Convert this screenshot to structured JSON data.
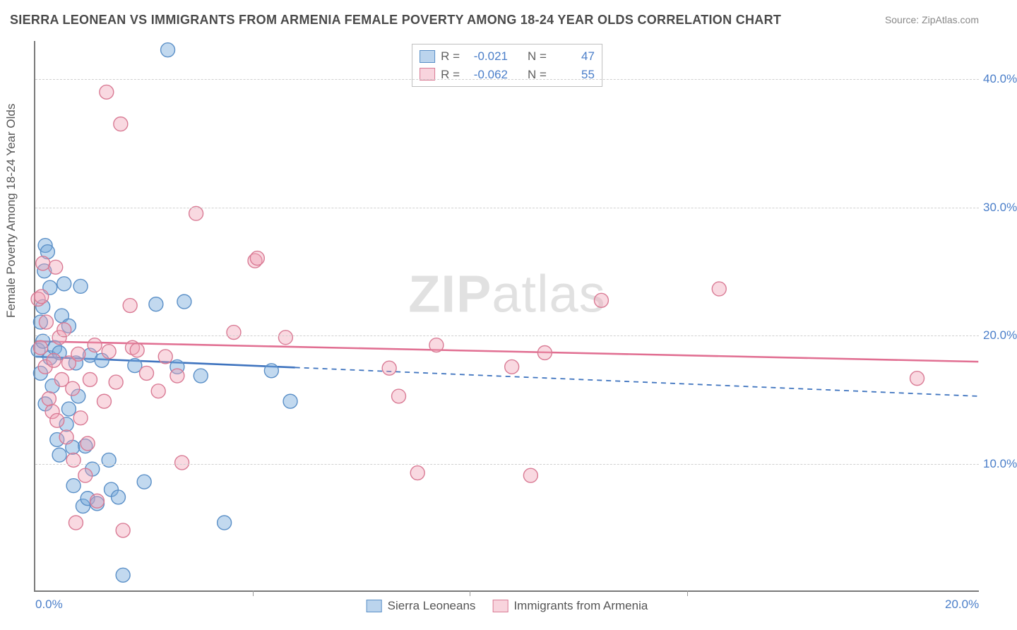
{
  "title": "SIERRA LEONEAN VS IMMIGRANTS FROM ARMENIA FEMALE POVERTY AMONG 18-24 YEAR OLDS CORRELATION CHART",
  "source": "Source: ZipAtlas.com",
  "watermark_zip": "ZIP",
  "watermark_atlas": "atlas",
  "ylabel": "Female Poverty Among 18-24 Year Olds",
  "chart": {
    "type": "scatter",
    "background_color": "#ffffff",
    "grid_color": "#d0d0d0",
    "axis_color": "#7a7a7a",
    "tick_label_color": "#4a7ec9",
    "label_fontsize": 17,
    "title_fontsize": 18,
    "xlim": [
      0,
      20
    ],
    "ylim": [
      0,
      43
    ],
    "xticks": [
      0,
      20
    ],
    "xtick_labels": [
      "0.0%",
      "20.0%"
    ],
    "xtick_minor": [
      4.6,
      9.2,
      13.8
    ],
    "yticks": [
      10,
      20,
      30,
      40
    ],
    "ytick_labels": [
      "10.0%",
      "20.0%",
      "30.0%",
      "40.0%"
    ],
    "marker_radius": 10,
    "marker_stroke_width": 1.4,
    "series": [
      {
        "name": "Sierra Leoneans",
        "fill": "rgba(120,170,220,0.45)",
        "stroke": "#5a8fc7",
        "r_value": "-0.021",
        "n_value": "47",
        "trend": {
          "y_at_x0": 18.3,
          "y_at_xmax": 15.2,
          "solid_until_x": 5.5,
          "color": "#3f74bf",
          "width": 2.6
        },
        "points": [
          [
            0.05,
            18.8
          ],
          [
            0.1,
            17.0
          ],
          [
            0.1,
            21.0
          ],
          [
            0.15,
            19.5
          ],
          [
            0.15,
            22.2
          ],
          [
            0.18,
            25.0
          ],
          [
            0.2,
            14.6
          ],
          [
            0.2,
            27.0
          ],
          [
            0.25,
            26.5
          ],
          [
            0.3,
            23.7
          ],
          [
            0.3,
            18.2
          ],
          [
            0.35,
            16.0
          ],
          [
            0.4,
            19.0
          ],
          [
            0.45,
            11.8
          ],
          [
            0.5,
            18.6
          ],
          [
            0.5,
            10.6
          ],
          [
            0.55,
            21.5
          ],
          [
            0.6,
            24.0
          ],
          [
            0.65,
            13.0
          ],
          [
            0.7,
            20.7
          ],
          [
            0.7,
            14.2
          ],
          [
            0.78,
            11.2
          ],
          [
            0.8,
            8.2
          ],
          [
            0.85,
            17.8
          ],
          [
            0.9,
            15.2
          ],
          [
            0.95,
            23.8
          ],
          [
            1.0,
            6.6
          ],
          [
            1.05,
            11.3
          ],
          [
            1.1,
            7.2
          ],
          [
            1.15,
            18.4
          ],
          [
            1.2,
            9.5
          ],
          [
            1.3,
            6.8
          ],
          [
            1.4,
            18.0
          ],
          [
            1.55,
            10.2
          ],
          [
            1.6,
            7.9
          ],
          [
            1.75,
            7.3
          ],
          [
            1.85,
            1.2
          ],
          [
            2.1,
            17.6
          ],
          [
            2.3,
            8.5
          ],
          [
            2.55,
            22.4
          ],
          [
            2.8,
            42.3
          ],
          [
            3.0,
            17.5
          ],
          [
            3.15,
            22.6
          ],
          [
            3.5,
            16.8
          ],
          [
            4.0,
            5.3
          ],
          [
            5.0,
            17.2
          ],
          [
            5.4,
            14.8
          ]
        ]
      },
      {
        "name": "Immigrants from Armenia",
        "fill": "rgba(240,160,180,0.40)",
        "stroke": "#d97a94",
        "r_value": "-0.062",
        "n_value": "55",
        "trend": {
          "y_at_x0": 19.5,
          "y_at_xmax": 17.9,
          "solid_until_x": 20,
          "color": "#e16f92",
          "width": 2.6
        },
        "points": [
          [
            0.05,
            22.8
          ],
          [
            0.1,
            19.0
          ],
          [
            0.12,
            23.0
          ],
          [
            0.15,
            25.6
          ],
          [
            0.2,
            17.5
          ],
          [
            0.22,
            21.0
          ],
          [
            0.28,
            15.0
          ],
          [
            0.35,
            14.0
          ],
          [
            0.38,
            18.0
          ],
          [
            0.42,
            25.3
          ],
          [
            0.45,
            13.3
          ],
          [
            0.5,
            19.8
          ],
          [
            0.55,
            16.5
          ],
          [
            0.6,
            20.4
          ],
          [
            0.65,
            12.0
          ],
          [
            0.7,
            17.8
          ],
          [
            0.78,
            15.8
          ],
          [
            0.8,
            10.2
          ],
          [
            0.85,
            5.3
          ],
          [
            0.9,
            18.5
          ],
          [
            0.95,
            13.5
          ],
          [
            1.05,
            9.0
          ],
          [
            1.1,
            11.5
          ],
          [
            1.15,
            16.5
          ],
          [
            1.25,
            19.2
          ],
          [
            1.3,
            7.0
          ],
          [
            1.45,
            14.8
          ],
          [
            1.5,
            39.0
          ],
          [
            1.55,
            18.7
          ],
          [
            1.7,
            16.3
          ],
          [
            1.8,
            36.5
          ],
          [
            1.85,
            4.7
          ],
          [
            2.0,
            22.3
          ],
          [
            2.05,
            19.0
          ],
          [
            2.15,
            18.8
          ],
          [
            2.35,
            17.0
          ],
          [
            2.6,
            15.6
          ],
          [
            2.75,
            18.3
          ],
          [
            3.0,
            16.8
          ],
          [
            3.1,
            10.0
          ],
          [
            3.4,
            29.5
          ],
          [
            4.2,
            20.2
          ],
          [
            4.65,
            25.8
          ],
          [
            4.7,
            26.0
          ],
          [
            5.3,
            19.8
          ],
          [
            7.5,
            17.4
          ],
          [
            7.7,
            15.2
          ],
          [
            8.1,
            9.2
          ],
          [
            8.5,
            19.2
          ],
          [
            10.1,
            17.5
          ],
          [
            10.5,
            9.0
          ],
          [
            10.8,
            18.6
          ],
          [
            12.0,
            22.7
          ],
          [
            14.5,
            23.6
          ],
          [
            18.7,
            16.6
          ]
        ]
      }
    ]
  },
  "legend": {
    "r_label": "R  =",
    "n_label": "N  ="
  }
}
